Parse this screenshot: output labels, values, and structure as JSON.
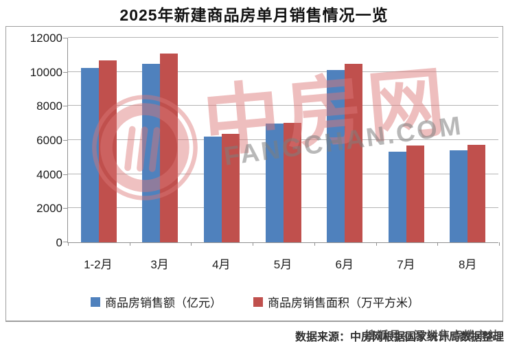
{
  "title": "2025年新建商品房单月销售情况一览",
  "chart_data": {
    "type": "bar",
    "categories": [
      "1-2月",
      "3月",
      "4月",
      "5月",
      "6月",
      "7月",
      "8月"
    ],
    "series": [
      {
        "name": "商品房销售额（亿元）",
        "color": "#4F81BD",
        "values": [
          10250,
          10500,
          6240,
          7000,
          10150,
          5320,
          5400
        ]
      },
      {
        "name": "商品房销售面积（万平方米）",
        "color": "#C0504D",
        "values": [
          10710,
          11100,
          6390,
          7050,
          10500,
          5690,
          5730
        ]
      }
    ],
    "ylim": [
      0,
      12000
    ],
    "y_ticks": [
      0,
      2000,
      4000,
      6000,
      8000,
      10000,
      12000
    ],
    "grid": true,
    "legend_position": "bottom"
  },
  "watermark": {
    "brand_text": "中房网",
    "domain_text": "FANGCHAN.COM",
    "red": "#DC7878",
    "gray": "#7D7D7D"
  },
  "footer": {
    "source": "数据来源：中房网根据国家统计局数据整理",
    "overlay": "搜狐号@深圳焦点楼市站"
  }
}
